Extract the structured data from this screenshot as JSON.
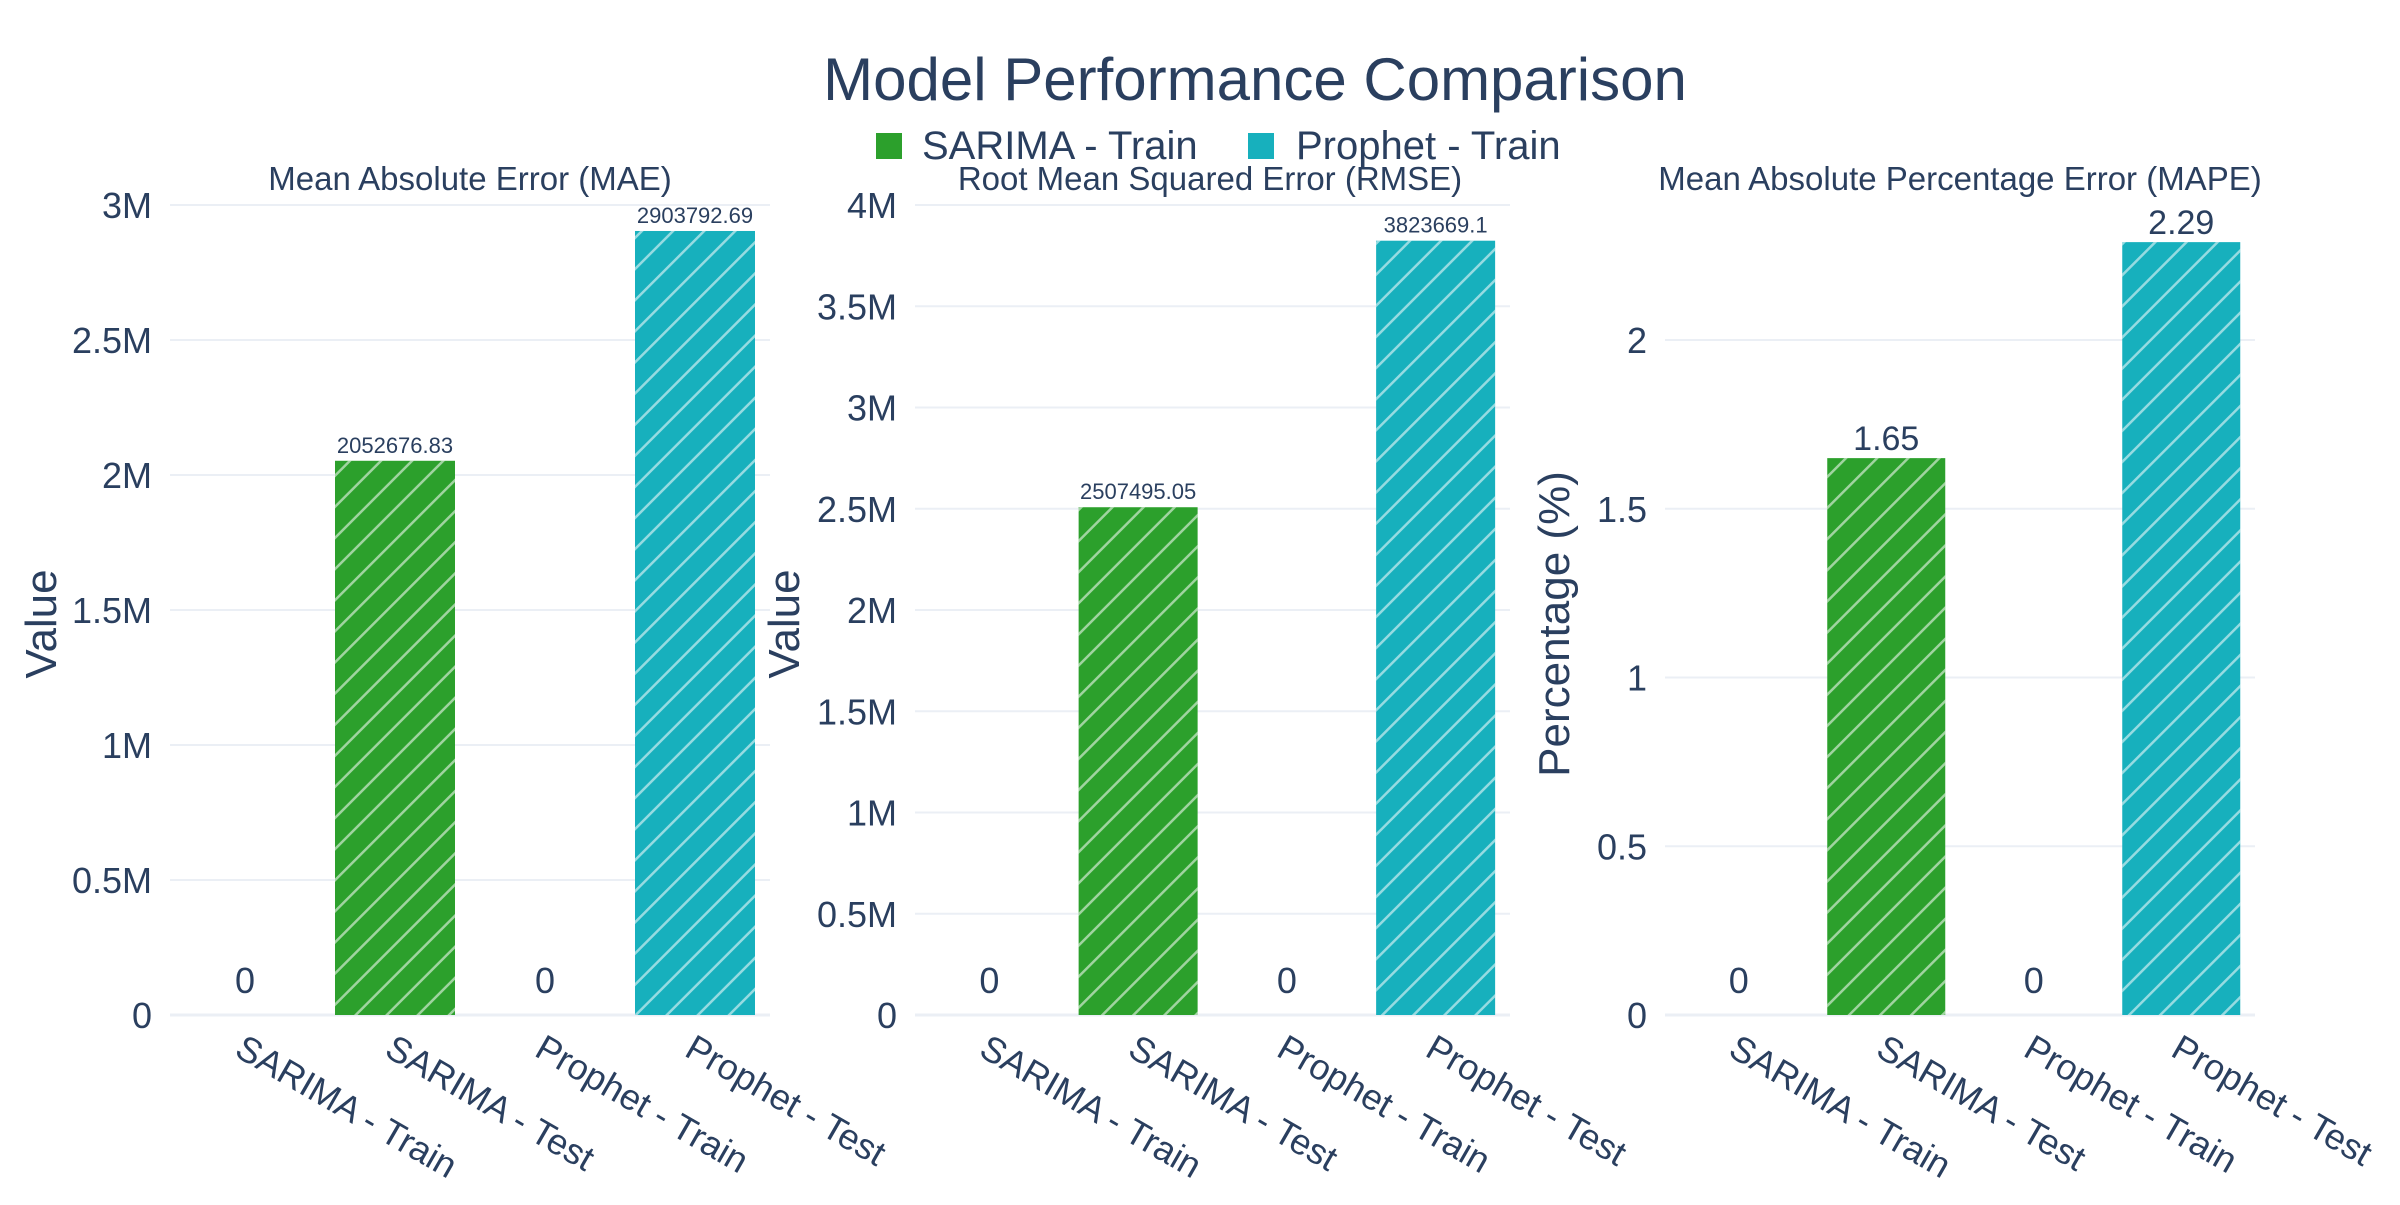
{
  "title": "Model Performance Comparison",
  "legend": {
    "placement": "top-center",
    "items": [
      {
        "name": "SARIMA - Train",
        "color": "#2ca02c"
      },
      {
        "name": "Prophet - Train",
        "color": "#17b0bd"
      }
    ]
  },
  "colors": {
    "sarima": "#2ca02c",
    "prophet": "#17b0bd",
    "text": "#2a3f5f",
    "grid": "#ebeff5"
  },
  "chart_data": [
    {
      "type": "bar",
      "title": "Mean Absolute Error (MAE)",
      "ylabel": "Value",
      "categories": [
        "SARIMA - Train",
        "SARIMA - Test",
        "Prophet - Train",
        "Prophet - Test"
      ],
      "values": [
        0,
        2052676.83,
        0,
        2903792.69
      ],
      "labels": [
        "0",
        "2052676.83",
        "0",
        "2903792.69"
      ],
      "bar_colors": [
        "#2ca02c",
        "#2ca02c",
        "#17b0bd",
        "#17b0bd"
      ],
      "ylim": [
        0,
        3000000
      ],
      "yticks": [
        0,
        500000,
        1000000,
        1500000,
        2000000,
        2500000,
        3000000
      ],
      "ytick_labels": [
        "0",
        "0.5M",
        "1M",
        "1.5M",
        "2M",
        "2.5M",
        "3M"
      ],
      "pattern": "diagonal-hatch",
      "grid": true
    },
    {
      "type": "bar",
      "title": "Root Mean Squared Error (RMSE)",
      "ylabel": "Value",
      "categories": [
        "SARIMA - Train",
        "SARIMA - Test",
        "Prophet - Train",
        "Prophet - Test"
      ],
      "values": [
        0,
        2507495.05,
        0,
        3823669.1
      ],
      "labels": [
        "0",
        "2507495.05",
        "0",
        "3823669.1"
      ],
      "bar_colors": [
        "#2ca02c",
        "#2ca02c",
        "#17b0bd",
        "#17b0bd"
      ],
      "ylim": [
        0,
        4000000
      ],
      "yticks": [
        0,
        500000,
        1000000,
        1500000,
        2000000,
        2500000,
        3000000,
        3500000,
        4000000
      ],
      "ytick_labels": [
        "0",
        "0.5M",
        "1M",
        "1.5M",
        "2M",
        "2.5M",
        "3M",
        "3.5M",
        "4M"
      ],
      "pattern": "diagonal-hatch",
      "grid": true
    },
    {
      "type": "bar",
      "title": "Mean Absolute Percentage Error (MAPE)",
      "ylabel": "Percentage (%)",
      "categories": [
        "SARIMA - Train",
        "SARIMA - Test",
        "Prophet - Train",
        "Prophet - Test"
      ],
      "values": [
        0,
        1.65,
        0,
        2.29
      ],
      "labels": [
        "0",
        "1.65",
        "0",
        "2.29"
      ],
      "bar_colors": [
        "#2ca02c",
        "#2ca02c",
        "#17b0bd",
        "#17b0bd"
      ],
      "ylim": [
        0,
        2.4
      ],
      "yticks": [
        0,
        0.5,
        1,
        1.5,
        2
      ],
      "ytick_labels": [
        "0",
        "0.5",
        "1",
        "1.5",
        "2"
      ],
      "pattern": "diagonal-hatch",
      "grid": true
    }
  ]
}
